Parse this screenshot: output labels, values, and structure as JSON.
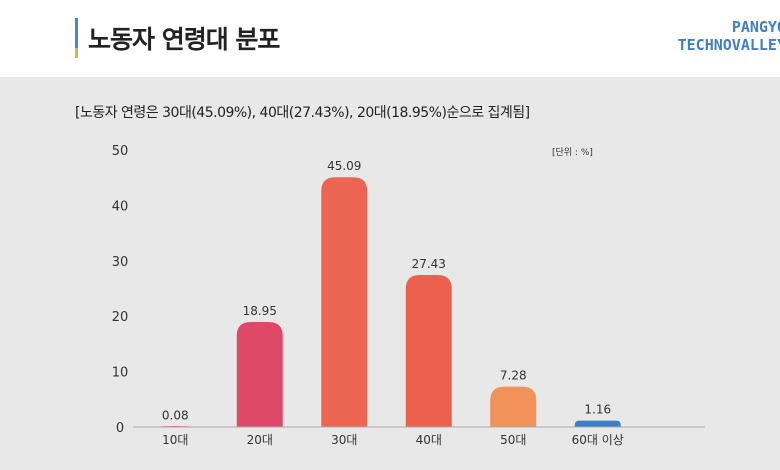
{
  "header": {
    "title": "노동자 연령대 분포",
    "logo_line1": "PANGYO",
    "logo_line2": "TECHNOVALLEY"
  },
  "chart_data": {
    "type": "bar",
    "title": "[노동자 연령은 30대(45.09%), 40대(27.43%), 20대(18.95%)순으로 집계됨]",
    "unit_label": "[단위 : %]",
    "categories": [
      "10대",
      "20대",
      "30대",
      "40대",
      "50대",
      "60대 이상"
    ],
    "values": [
      0.08,
      18.95,
      45.09,
      27.43,
      7.28,
      1.16
    ],
    "value_labels": [
      "0.08",
      "18.95",
      "45.09",
      "27.43",
      "7.28",
      "1.16"
    ],
    "colors": [
      "#e0506a",
      "#df4968",
      "#ec6552",
      "#ec604e",
      "#f0925a",
      "#3b80c4"
    ],
    "ylim": [
      0,
      50
    ],
    "yticks": [
      0,
      10,
      20,
      30,
      40,
      50
    ],
    "xlabel": "",
    "ylabel": "",
    "grid": false
  }
}
